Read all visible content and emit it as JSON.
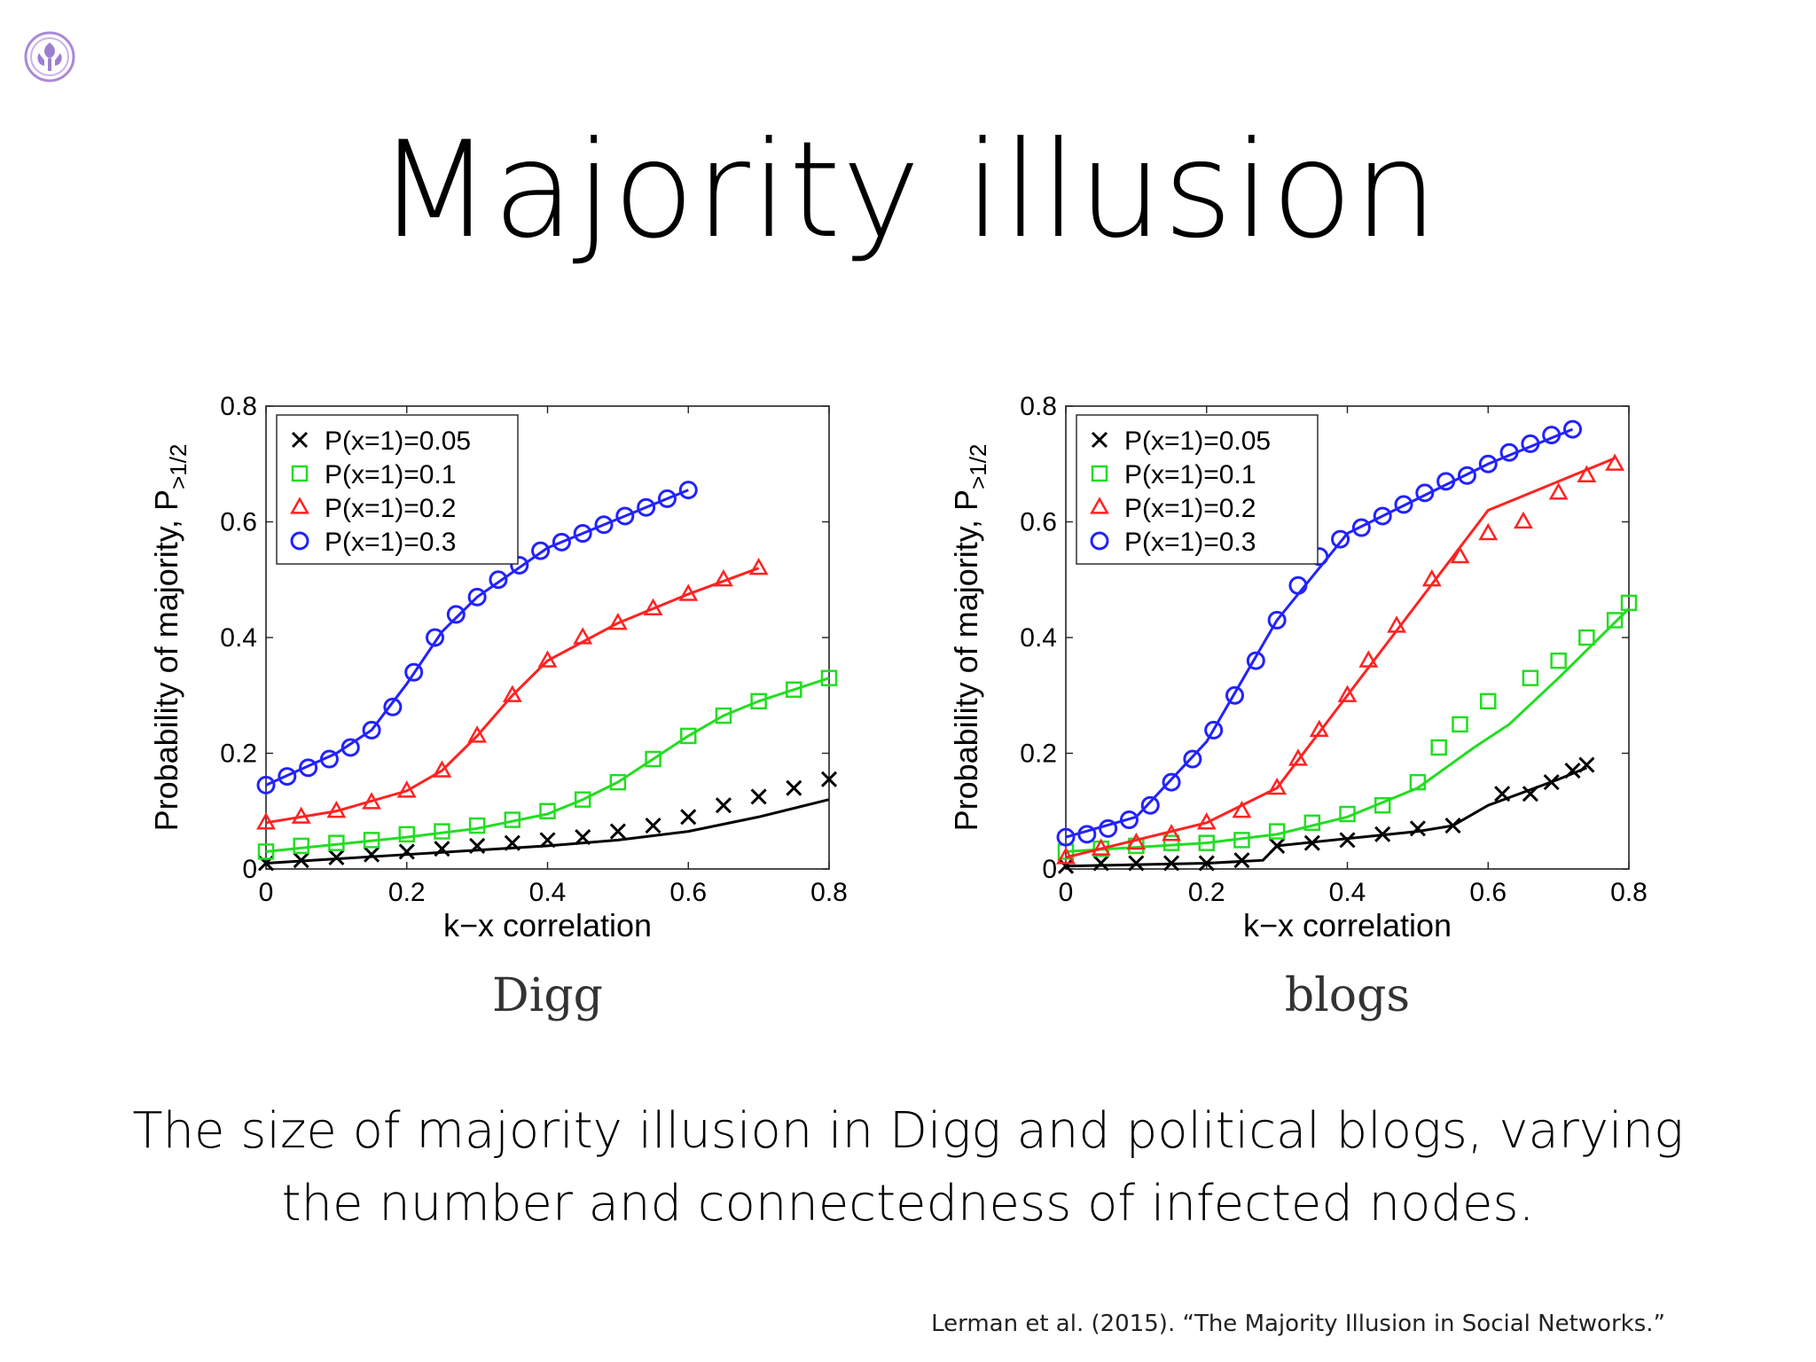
{
  "slide": {
    "title": "Majority illusion",
    "caption_line1": "The size of majority illusion in Digg and political blogs, varying",
    "caption_line2": "the number and connectedness of infected nodes.",
    "citation": "Lerman et al. (2015). “The Majority Illusion in Social Networks.”"
  },
  "colors": {
    "p005": "#000000",
    "p01": "#22dd22",
    "p02": "#ff2222",
    "p03": "#2222ff"
  },
  "chart_data": [
    {
      "type": "scatter",
      "title": "Digg",
      "xlabel": "k−x correlation",
      "ylabel_main": "Probability of majority, P",
      "ylabel_sub": ">1/2",
      "xlim": [
        0,
        0.8
      ],
      "ylim": [
        0,
        0.8
      ],
      "xticks": [
        "0",
        "0.2",
        "0.4",
        "0.6",
        "0.8"
      ],
      "yticks": [
        "0",
        "0.2",
        "0.4",
        "0.6",
        "0.8"
      ],
      "legend_position": "top-left",
      "series": [
        {
          "name": "P(x=1)=0.05",
          "marker": "x",
          "color": "#000000",
          "points": [
            [
              0,
              0.01
            ],
            [
              0.05,
              0.015
            ],
            [
              0.1,
              0.02
            ],
            [
              0.15,
              0.025
            ],
            [
              0.2,
              0.03
            ],
            [
              0.25,
              0.035
            ],
            [
              0.3,
              0.04
            ],
            [
              0.35,
              0.045
            ],
            [
              0.4,
              0.05
            ],
            [
              0.45,
              0.055
            ],
            [
              0.5,
              0.065
            ],
            [
              0.55,
              0.075
            ],
            [
              0.6,
              0.09
            ],
            [
              0.65,
              0.11
            ],
            [
              0.7,
              0.125
            ],
            [
              0.75,
              0.14
            ],
            [
              0.8,
              0.155
            ]
          ],
          "model": [
            [
              0,
              0.01
            ],
            [
              0.2,
              0.025
            ],
            [
              0.4,
              0.04
            ],
            [
              0.5,
              0.05
            ],
            [
              0.6,
              0.065
            ],
            [
              0.7,
              0.09
            ],
            [
              0.8,
              0.12
            ]
          ]
        },
        {
          "name": "P(x=1)=0.1",
          "marker": "square",
          "color": "#22dd22",
          "points": [
            [
              0,
              0.03
            ],
            [
              0.05,
              0.04
            ],
            [
              0.1,
              0.045
            ],
            [
              0.15,
              0.05
            ],
            [
              0.2,
              0.06
            ],
            [
              0.25,
              0.065
            ],
            [
              0.3,
              0.075
            ],
            [
              0.35,
              0.085
            ],
            [
              0.4,
              0.1
            ],
            [
              0.45,
              0.12
            ],
            [
              0.5,
              0.15
            ],
            [
              0.55,
              0.19
            ],
            [
              0.6,
              0.23
            ],
            [
              0.65,
              0.265
            ],
            [
              0.7,
              0.29
            ],
            [
              0.75,
              0.31
            ],
            [
              0.8,
              0.33
            ]
          ],
          "model": [
            [
              0,
              0.03
            ],
            [
              0.2,
              0.055
            ],
            [
              0.3,
              0.07
            ],
            [
              0.4,
              0.095
            ],
            [
              0.45,
              0.12
            ],
            [
              0.5,
              0.15
            ],
            [
              0.55,
              0.19
            ],
            [
              0.6,
              0.23
            ],
            [
              0.65,
              0.265
            ],
            [
              0.7,
              0.29
            ],
            [
              0.8,
              0.33
            ]
          ]
        },
        {
          "name": "P(x=1)=0.2",
          "marker": "triangle",
          "color": "#ff2222",
          "points": [
            [
              0,
              0.08
            ],
            [
              0.05,
              0.09
            ],
            [
              0.1,
              0.1
            ],
            [
              0.15,
              0.115
            ],
            [
              0.2,
              0.135
            ],
            [
              0.25,
              0.17
            ],
            [
              0.3,
              0.23
            ],
            [
              0.35,
              0.3
            ],
            [
              0.4,
              0.36
            ],
            [
              0.45,
              0.4
            ],
            [
              0.5,
              0.425
            ],
            [
              0.55,
              0.45
            ],
            [
              0.6,
              0.475
            ],
            [
              0.65,
              0.5
            ],
            [
              0.7,
              0.52
            ]
          ],
          "model": [
            [
              0,
              0.08
            ],
            [
              0.1,
              0.1
            ],
            [
              0.2,
              0.135
            ],
            [
              0.25,
              0.17
            ],
            [
              0.3,
              0.23
            ],
            [
              0.35,
              0.3
            ],
            [
              0.4,
              0.36
            ],
            [
              0.5,
              0.425
            ],
            [
              0.6,
              0.475
            ],
            [
              0.7,
              0.52
            ]
          ]
        },
        {
          "name": "P(x=1)=0.3",
          "marker": "circle",
          "color": "#2222ff",
          "points": [
            [
              0,
              0.145
            ],
            [
              0.03,
              0.16
            ],
            [
              0.06,
              0.175
            ],
            [
              0.09,
              0.19
            ],
            [
              0.12,
              0.21
            ],
            [
              0.15,
              0.24
            ],
            [
              0.18,
              0.28
            ],
            [
              0.21,
              0.34
            ],
            [
              0.24,
              0.4
            ],
            [
              0.27,
              0.44
            ],
            [
              0.3,
              0.47
            ],
            [
              0.33,
              0.5
            ],
            [
              0.36,
              0.525
            ],
            [
              0.39,
              0.55
            ],
            [
              0.42,
              0.565
            ],
            [
              0.45,
              0.58
            ],
            [
              0.48,
              0.595
            ],
            [
              0.51,
              0.61
            ],
            [
              0.54,
              0.625
            ],
            [
              0.57,
              0.64
            ],
            [
              0.6,
              0.655
            ]
          ],
          "model": [
            [
              0,
              0.145
            ],
            [
              0.1,
              0.2
            ],
            [
              0.15,
              0.24
            ],
            [
              0.2,
              0.32
            ],
            [
              0.25,
              0.41
            ],
            [
              0.3,
              0.47
            ],
            [
              0.4,
              0.555
            ],
            [
              0.5,
              0.605
            ],
            [
              0.6,
              0.655
            ]
          ]
        }
      ]
    },
    {
      "type": "scatter",
      "title": "blogs",
      "xlabel": "k−x correlation",
      "ylabel_main": "Probability of majority, P",
      "ylabel_sub": ">1/2",
      "xlim": [
        0,
        0.8
      ],
      "ylim": [
        0,
        0.8
      ],
      "xticks": [
        "0",
        "0.2",
        "0.4",
        "0.6",
        "0.8"
      ],
      "yticks": [
        "0",
        "0.2",
        "0.4",
        "0.6",
        "0.8"
      ],
      "legend_position": "top-left",
      "series": [
        {
          "name": "P(x=1)=0.05",
          "marker": "x",
          "color": "#000000",
          "points": [
            [
              0,
              0.005
            ],
            [
              0.05,
              0.01
            ],
            [
              0.1,
              0.01
            ],
            [
              0.15,
              0.01
            ],
            [
              0.2,
              0.01
            ],
            [
              0.25,
              0.015
            ],
            [
              0.3,
              0.04
            ],
            [
              0.35,
              0.045
            ],
            [
              0.4,
              0.05
            ],
            [
              0.45,
              0.06
            ],
            [
              0.5,
              0.07
            ],
            [
              0.55,
              0.075
            ],
            [
              0.62,
              0.13
            ],
            [
              0.66,
              0.13
            ],
            [
              0.69,
              0.15
            ],
            [
              0.72,
              0.17
            ],
            [
              0.74,
              0.18
            ]
          ],
          "model": [
            [
              0,
              0.005
            ],
            [
              0.2,
              0.01
            ],
            [
              0.28,
              0.015
            ],
            [
              0.3,
              0.04
            ],
            [
              0.5,
              0.065
            ],
            [
              0.55,
              0.075
            ],
            [
              0.6,
              0.11
            ],
            [
              0.7,
              0.155
            ],
            [
              0.74,
              0.175
            ]
          ]
        },
        {
          "name": "P(x=1)=0.1",
          "marker": "square",
          "color": "#22dd22",
          "points": [
            [
              0,
              0.03
            ],
            [
              0.05,
              0.035
            ],
            [
              0.1,
              0.04
            ],
            [
              0.15,
              0.045
            ],
            [
              0.2,
              0.045
            ],
            [
              0.25,
              0.05
            ],
            [
              0.3,
              0.065
            ],
            [
              0.35,
              0.08
            ],
            [
              0.4,
              0.095
            ],
            [
              0.45,
              0.11
            ],
            [
              0.5,
              0.15
            ],
            [
              0.53,
              0.21
            ],
            [
              0.56,
              0.25
            ],
            [
              0.6,
              0.29
            ],
            [
              0.66,
              0.33
            ],
            [
              0.7,
              0.36
            ],
            [
              0.74,
              0.4
            ],
            [
              0.78,
              0.43
            ],
            [
              0.8,
              0.46
            ]
          ],
          "model": [
            [
              0,
              0.03
            ],
            [
              0.2,
              0.045
            ],
            [
              0.3,
              0.06
            ],
            [
              0.4,
              0.09
            ],
            [
              0.5,
              0.14
            ],
            [
              0.58,
              0.21
            ],
            [
              0.63,
              0.25
            ],
            [
              0.7,
              0.33
            ],
            [
              0.8,
              0.45
            ]
          ]
        },
        {
          "name": "P(x=1)=0.2",
          "marker": "triangle",
          "color": "#ff2222",
          "points": [
            [
              0,
              0.02
            ],
            [
              0.05,
              0.035
            ],
            [
              0.1,
              0.045
            ],
            [
              0.15,
              0.06
            ],
            [
              0.2,
              0.08
            ],
            [
              0.25,
              0.1
            ],
            [
              0.3,
              0.14
            ],
            [
              0.33,
              0.19
            ],
            [
              0.36,
              0.24
            ],
            [
              0.4,
              0.3
            ],
            [
              0.43,
              0.36
            ],
            [
              0.47,
              0.42
            ],
            [
              0.52,
              0.5
            ],
            [
              0.56,
              0.54
            ],
            [
              0.6,
              0.58
            ],
            [
              0.65,
              0.6
            ],
            [
              0.7,
              0.65
            ],
            [
              0.74,
              0.68
            ],
            [
              0.78,
              0.7
            ]
          ],
          "model": [
            [
              0,
              0.02
            ],
            [
              0.2,
              0.08
            ],
            [
              0.3,
              0.14
            ],
            [
              0.4,
              0.3
            ],
            [
              0.5,
              0.46
            ],
            [
              0.6,
              0.62
            ],
            [
              0.7,
              0.67
            ],
            [
              0.78,
              0.71
            ]
          ]
        },
        {
          "name": "P(x=1)=0.3",
          "marker": "circle",
          "color": "#2222ff",
          "points": [
            [
              0,
              0.055
            ],
            [
              0.03,
              0.06
            ],
            [
              0.06,
              0.07
            ],
            [
              0.09,
              0.085
            ],
            [
              0.12,
              0.11
            ],
            [
              0.15,
              0.15
            ],
            [
              0.18,
              0.19
            ],
            [
              0.21,
              0.24
            ],
            [
              0.24,
              0.3
            ],
            [
              0.27,
              0.36
            ],
            [
              0.3,
              0.43
            ],
            [
              0.33,
              0.49
            ],
            [
              0.36,
              0.54
            ],
            [
              0.39,
              0.57
            ],
            [
              0.42,
              0.59
            ],
            [
              0.45,
              0.61
            ],
            [
              0.48,
              0.63
            ],
            [
              0.51,
              0.65
            ],
            [
              0.54,
              0.67
            ],
            [
              0.57,
              0.68
            ],
            [
              0.6,
              0.7
            ],
            [
              0.63,
              0.72
            ],
            [
              0.66,
              0.735
            ],
            [
              0.69,
              0.75
            ],
            [
              0.72,
              0.76
            ]
          ],
          "model": [
            [
              0,
              0.055
            ],
            [
              0.1,
              0.09
            ],
            [
              0.2,
              0.22
            ],
            [
              0.3,
              0.43
            ],
            [
              0.4,
              0.58
            ],
            [
              0.5,
              0.64
            ],
            [
              0.6,
              0.7
            ],
            [
              0.72,
              0.76
            ]
          ]
        }
      ]
    }
  ]
}
